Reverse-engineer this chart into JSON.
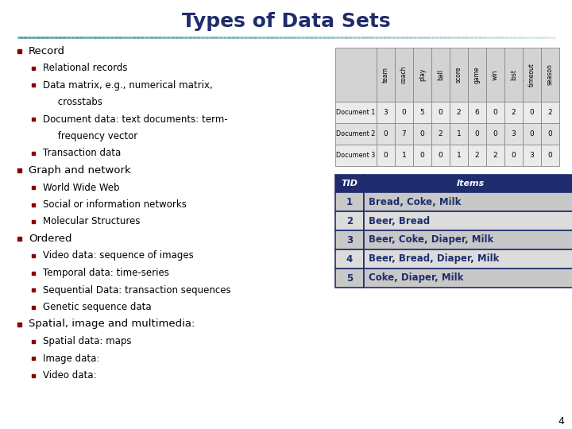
{
  "title": "Types of Data Sets",
  "title_color": "#1F2D6E",
  "title_fontsize": 18,
  "background_color": "#FFFFFF",
  "slide_number": "4",
  "bullet_color": "#8B0000",
  "text_color": "#000000",
  "header_line_color": "#5B9EA6",
  "top_table": {
    "headers": [
      "team",
      "coach",
      "play",
      "ball",
      "score",
      "game",
      "win",
      "lost",
      "timeout",
      "season"
    ],
    "rows": [
      {
        "label": "Document 1",
        "values": [
          "3",
          "0",
          "5",
          "0",
          "2",
          "6",
          "0",
          "2",
          "0",
          "2"
        ]
      },
      {
        "label": "Document 2",
        "values": [
          "0",
          "7",
          "0",
          "2",
          "1",
          "0",
          "0",
          "3",
          "0",
          "0"
        ]
      },
      {
        "label": "Document 3",
        "values": [
          "0",
          "1",
          "0",
          "0",
          "1",
          "2",
          "2",
          "0",
          "3",
          "0"
        ]
      }
    ],
    "header_bg": "#D3D3D3",
    "row_bg_odd": "#EBEBEB",
    "row_bg_even": "#E0E0E0",
    "border_color": "#888888"
  },
  "bottom_table": {
    "col_headers": [
      "TID",
      "Items"
    ],
    "rows": [
      [
        "1",
        "Bread, Coke, Milk"
      ],
      [
        "2",
        "Beer, Bread"
      ],
      [
        "3",
        "Beer, Coke, Diaper, Milk"
      ],
      [
        "4",
        "Beer, Bread, Diaper, Milk"
      ],
      [
        "5",
        "Coke, Diaper, Milk"
      ]
    ],
    "header_bg": "#1F2D6E",
    "header_text_color": "#FFFFFF",
    "row_bg_odd": "#C8C8C8",
    "row_bg_even": "#DCDCDC",
    "text_color": "#1F2D6E",
    "border_color": "#1F2D6E"
  }
}
